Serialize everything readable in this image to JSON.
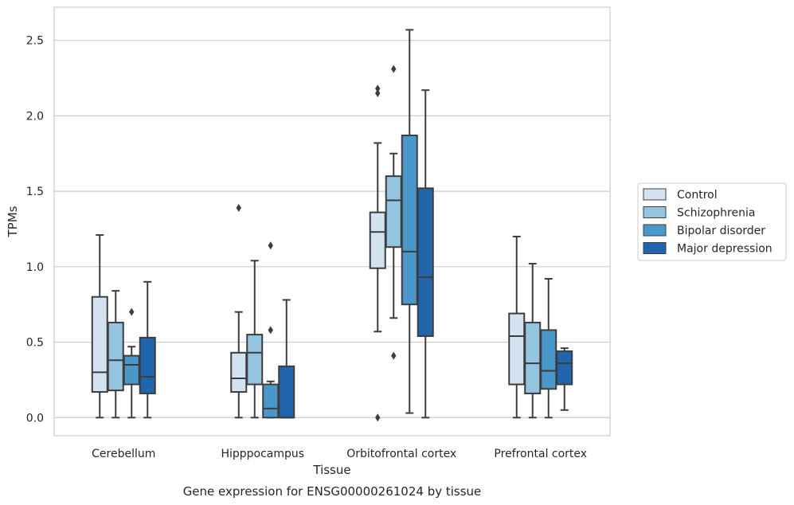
{
  "chart_data": {
    "type": "box",
    "caption": "Gene expression for ENSG00000261024 by tissue",
    "xlabel": "Tissue",
    "ylabel": "TPMs",
    "ylim": [
      -0.12,
      2.72
    ],
    "yticks": [
      0.0,
      0.5,
      1.0,
      1.5,
      2.0,
      2.5
    ],
    "ytick_labels": [
      "0.0",
      "0.5",
      "1.0",
      "1.5",
      "2.0",
      "2.5"
    ],
    "grid": "horizontal",
    "legend_position": "right",
    "categories": [
      "Cerebellum",
      "Hipppocampus",
      "Orbitofrontal cortex",
      "Prefrontal cortex"
    ],
    "series": [
      {
        "name": "Control",
        "color": "#d3e3f1",
        "boxes": [
          {
            "whisker_low": 0.0,
            "q1": 0.17,
            "median": 0.3,
            "q3": 0.8,
            "whisker_high": 1.21,
            "outliers": []
          },
          {
            "whisker_low": 0.0,
            "q1": 0.17,
            "median": 0.26,
            "q3": 0.43,
            "whisker_high": 0.7,
            "outliers": [
              1.39
            ]
          },
          {
            "whisker_low": 0.57,
            "q1": 0.99,
            "median": 1.23,
            "q3": 1.36,
            "whisker_high": 1.82,
            "outliers": [
              2.15,
              2.18,
              0.0
            ]
          },
          {
            "whisker_low": 0.0,
            "q1": 0.22,
            "median": 0.54,
            "q3": 0.69,
            "whisker_high": 1.2,
            "outliers": []
          }
        ]
      },
      {
        "name": "Schizophrenia",
        "color": "#94c4df",
        "boxes": [
          {
            "whisker_low": 0.0,
            "q1": 0.18,
            "median": 0.38,
            "q3": 0.63,
            "whisker_high": 0.84,
            "outliers": []
          },
          {
            "whisker_low": 0.0,
            "q1": 0.22,
            "median": 0.43,
            "q3": 0.55,
            "whisker_high": 1.04,
            "outliers": []
          },
          {
            "whisker_low": 0.66,
            "q1": 1.13,
            "median": 1.44,
            "q3": 1.6,
            "whisker_high": 1.75,
            "outliers": [
              2.31,
              0.41
            ]
          },
          {
            "whisker_low": 0.0,
            "q1": 0.16,
            "median": 0.36,
            "q3": 0.63,
            "whisker_high": 1.02,
            "outliers": []
          }
        ]
      },
      {
        "name": "Bipolar disorder",
        "color": "#4a98c9",
        "boxes": [
          {
            "whisker_low": 0.0,
            "q1": 0.22,
            "median": 0.35,
            "q3": 0.41,
            "whisker_high": 0.47,
            "outliers": [
              0.7
            ]
          },
          {
            "whisker_low": 0.0,
            "q1": 0.0,
            "median": 0.06,
            "q3": 0.22,
            "whisker_high": 0.24,
            "outliers": [
              1.14,
              0.58
            ]
          },
          {
            "whisker_low": 0.03,
            "q1": 0.75,
            "median": 1.1,
            "q3": 1.87,
            "whisker_high": 2.57,
            "outliers": []
          },
          {
            "whisker_low": 0.0,
            "q1": 0.19,
            "median": 0.31,
            "q3": 0.58,
            "whisker_high": 0.92,
            "outliers": []
          }
        ]
      },
      {
        "name": "Major depression",
        "color": "#2166ac",
        "boxes": [
          {
            "whisker_low": 0.0,
            "q1": 0.16,
            "median": 0.27,
            "q3": 0.53,
            "whisker_high": 0.9,
            "outliers": []
          },
          {
            "whisker_low": 0.0,
            "q1": 0.0,
            "median": 0.0,
            "q3": 0.34,
            "whisker_high": 0.78,
            "outliers": []
          },
          {
            "whisker_low": 0.0,
            "q1": 0.54,
            "median": 0.93,
            "q3": 1.52,
            "whisker_high": 2.17,
            "outliers": []
          },
          {
            "whisker_low": 0.05,
            "q1": 0.22,
            "median": 0.36,
            "q3": 0.44,
            "whisker_high": 0.46,
            "outliers": []
          }
        ]
      }
    ]
  }
}
